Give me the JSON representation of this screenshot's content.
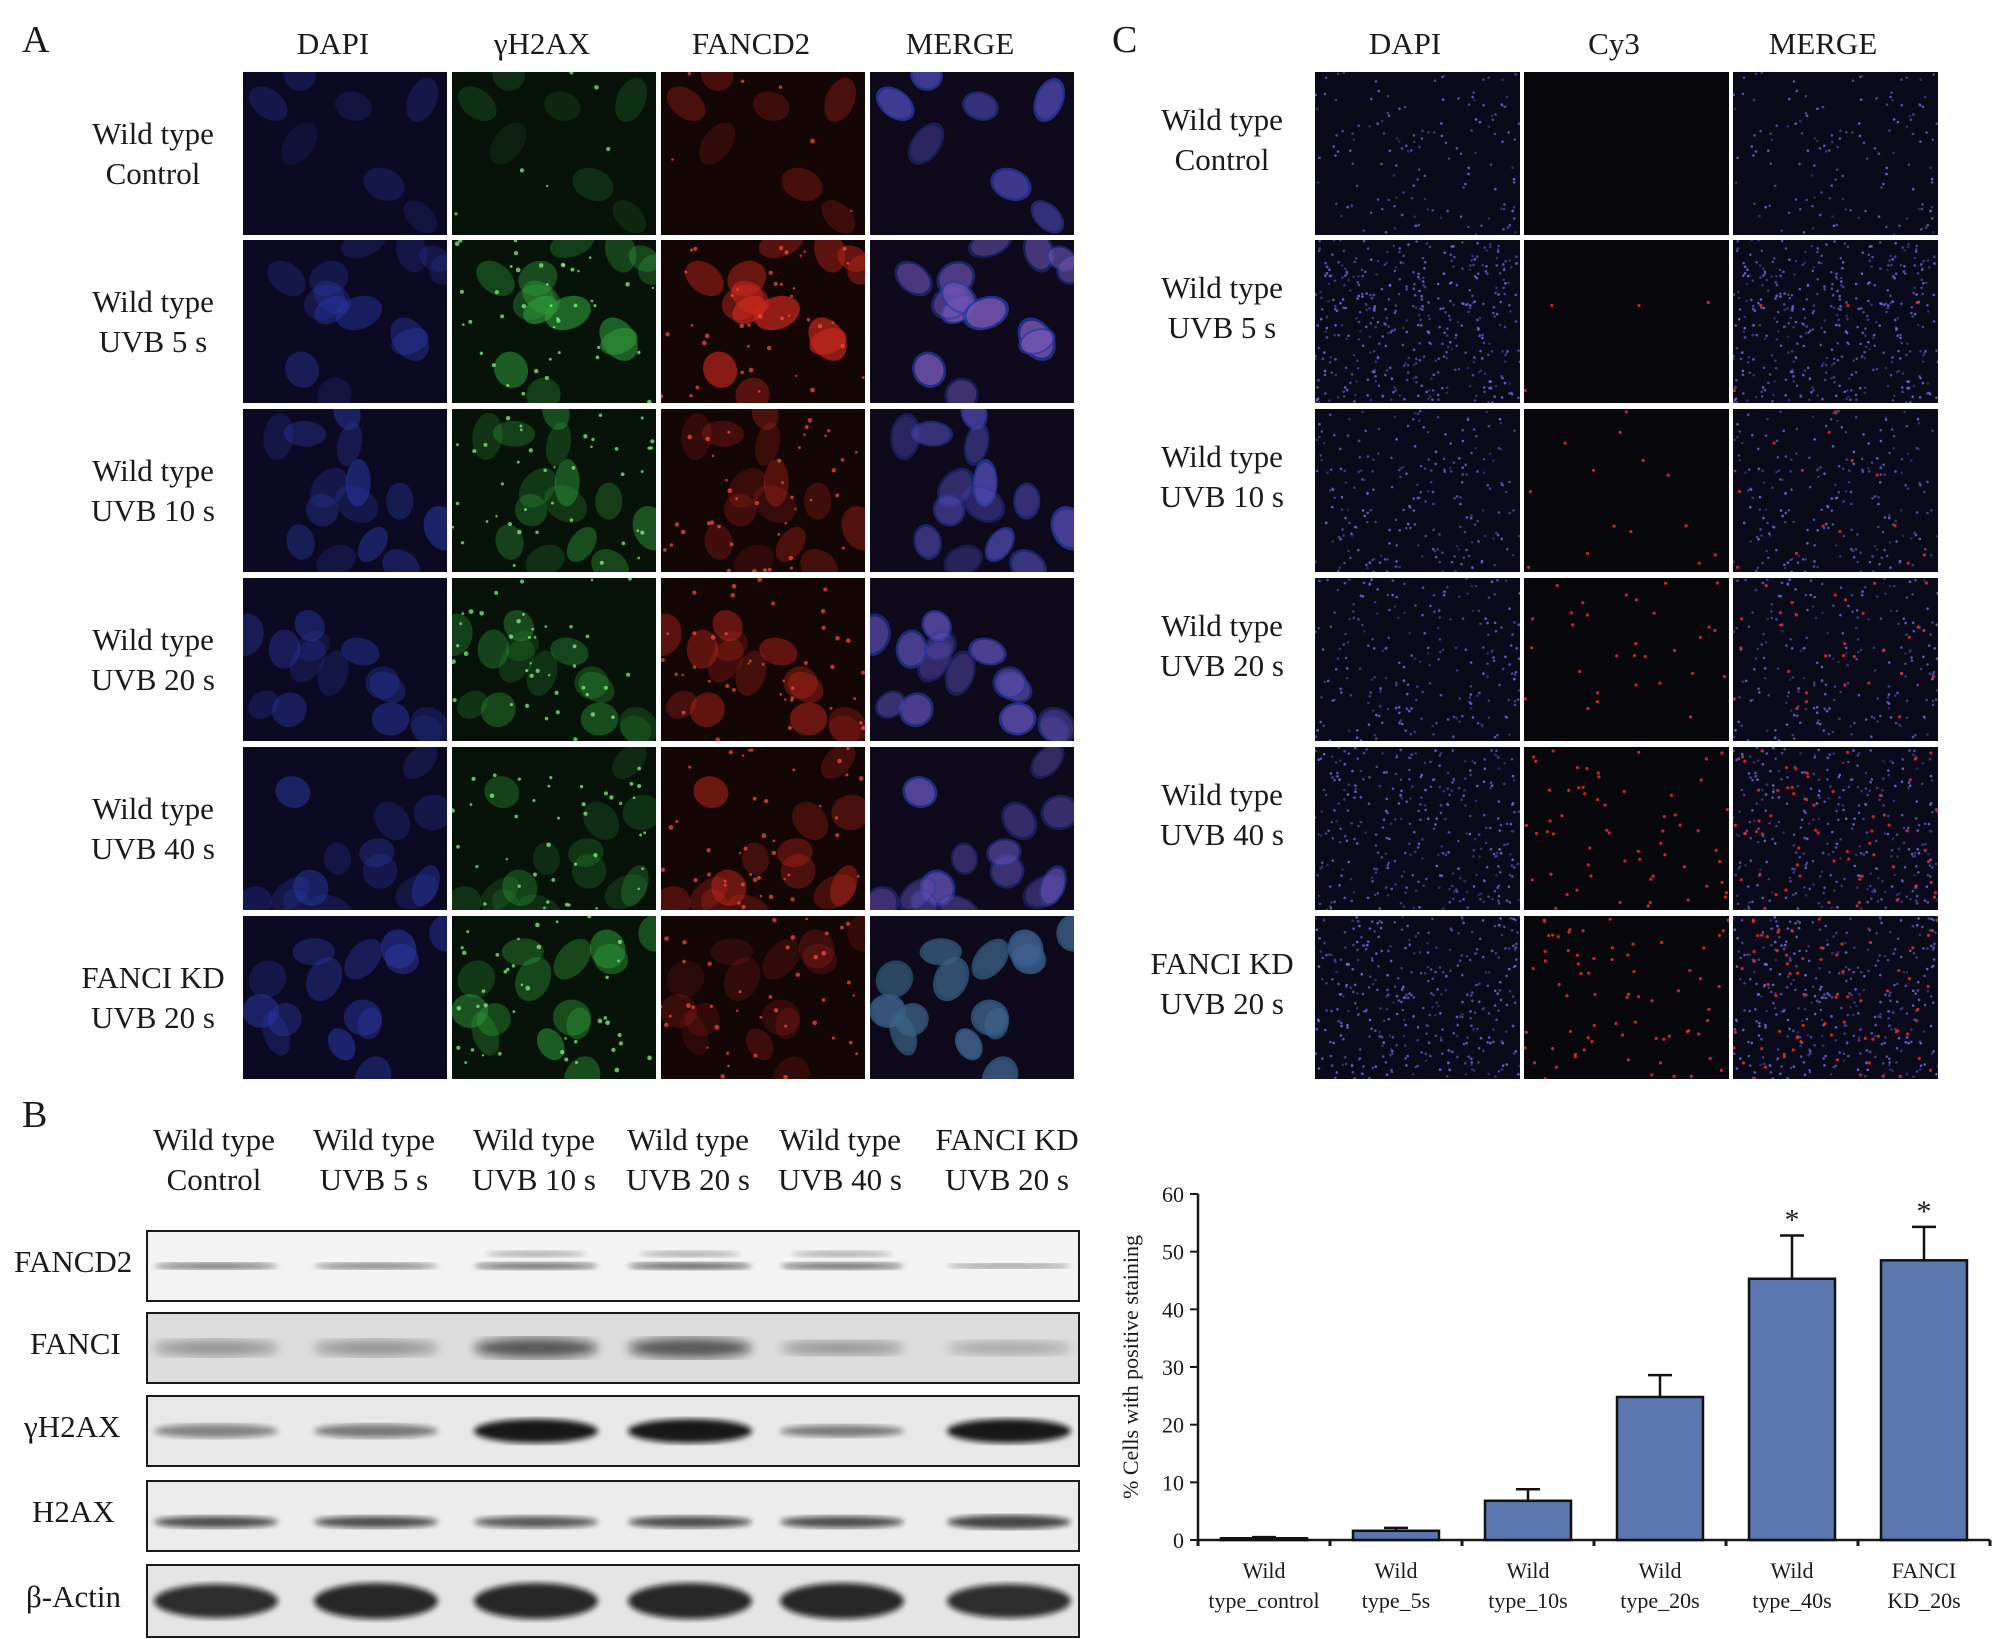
{
  "figure": {
    "panels": {
      "a": "A",
      "b": "B",
      "c": "C"
    },
    "panel_a": {
      "columns": [
        "DAPI",
        "γH2AX",
        "FANCD2",
        "MERGE"
      ],
      "rows": [
        {
          "line1": "Wild type",
          "line2": "Control"
        },
        {
          "line1": "Wild type",
          "line2": "UVB 5 s"
        },
        {
          "line1": "Wild type",
          "line2": "UVB 10 s"
        },
        {
          "line1": "Wild type",
          "line2": "UVB 20 s"
        },
        {
          "line1": "Wild type",
          "line2": "UVB 40 s"
        },
        {
          "line1": "FANCI KD",
          "line2": "UVB 20 s"
        }
      ],
      "colors": {
        "dapi": "#2a3aa8",
        "gh2ax": "#2f9a3a",
        "fancd2": "#c8281e",
        "background": "#06060c"
      }
    },
    "panel_c": {
      "columns": [
        "DAPI",
        "Cy3",
        "MERGE"
      ],
      "rows": [
        {
          "line1": "Wild type",
          "line2": "Control"
        },
        {
          "line1": "Wild type",
          "line2": "UVB 5 s"
        },
        {
          "line1": "Wild type",
          "line2": "UVB 10 s"
        },
        {
          "line1": "Wild type",
          "line2": "UVB 20 s"
        },
        {
          "line1": "Wild type",
          "line2": "UVB 40 s"
        },
        {
          "line1": "FANCI KD",
          "line2": "UVB 20 s"
        }
      ],
      "colors": {
        "dapi": "#6f6fe8",
        "cy3": "#e03030"
      }
    },
    "panel_b": {
      "lanes": [
        {
          "line1": "Wild type",
          "line2": "Control"
        },
        {
          "line1": "Wild type",
          "line2": "UVB 5 s"
        },
        {
          "line1": "Wild type",
          "line2": "UVB 10 s"
        },
        {
          "line1": "Wild type",
          "line2": "UVB 20 s"
        },
        {
          "line1": "Wild type",
          "line2": "UVB 40 s"
        },
        {
          "line1": "FANCI KD",
          "line2": "UVB 20 s"
        }
      ],
      "blots": [
        "FANCD2",
        "FANCI",
        "γH2AX",
        "H2AX",
        "β-Actin"
      ]
    }
  },
  "chart_data": {
    "type": "bar",
    "categories": [
      {
        "line1": "Wild",
        "line2": "type_control"
      },
      {
        "line1": "Wild",
        "line2": "type_5s"
      },
      {
        "line1": "Wild",
        "line2": "type_10s"
      },
      {
        "line1": "Wild",
        "line2": "type_20s"
      },
      {
        "line1": "Wild",
        "line2": "type_40s"
      },
      {
        "line1": "FANCI",
        "line2": "KD_20s"
      }
    ],
    "values": [
      0.3,
      1.6,
      6.8,
      24.8,
      45.3,
      48.5
    ],
    "errors": [
      0.2,
      0.5,
      2.0,
      3.8,
      7.5,
      5.8
    ],
    "significance": [
      "",
      "",
      "",
      "",
      "*",
      "*"
    ],
    "ylabel": "% Cells with positive staining",
    "xlabel": "",
    "ylim": [
      0,
      60
    ],
    "yticks": [
      0,
      10,
      20,
      30,
      40,
      50,
      60
    ],
    "bar_color": "#5b77ad",
    "grid": false
  }
}
